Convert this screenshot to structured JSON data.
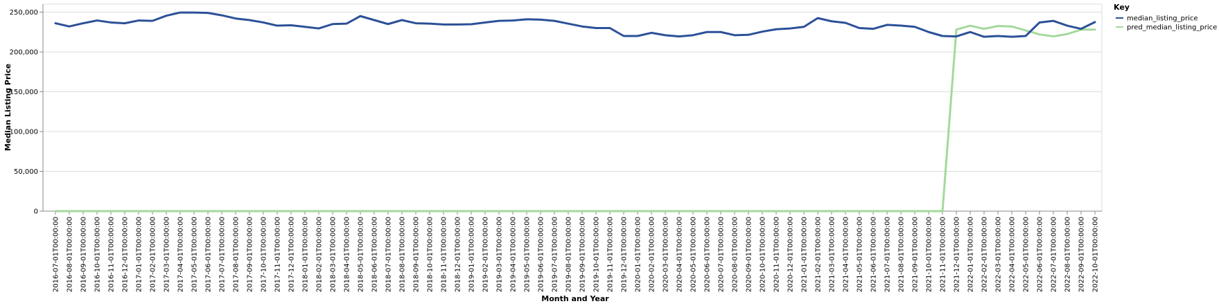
{
  "chart_data": {
    "type": "line",
    "xlabel": "Month and Year",
    "ylabel": "Median Listing Price",
    "ylim": [
      0,
      260000
    ],
    "y_ticks": [
      0,
      50000,
      100000,
      150000,
      200000,
      250000
    ],
    "y_tick_labels": [
      "0",
      "50,000",
      "100,000",
      "150,000",
      "200,000",
      "250,000"
    ],
    "grid": "horizontal",
    "legend": {
      "title": "Key",
      "placement": "top-right"
    },
    "x": [
      "2016-07-01T00:00:00",
      "2016-08-01T00:00:00",
      "2016-09-01T00:00:00",
      "2016-10-01T00:00:00",
      "2016-11-01T00:00:00",
      "2016-12-01T00:00:00",
      "2017-01-01T00:00:00",
      "2017-02-01T00:00:00",
      "2017-03-01T00:00:00",
      "2017-04-01T00:00:00",
      "2017-05-01T00:00:00",
      "2017-06-01T00:00:00",
      "2017-07-01T00:00:00",
      "2017-08-01T00:00:00",
      "2017-09-01T00:00:00",
      "2017-10-01T00:00:00",
      "2017-11-01T00:00:00",
      "2017-12-01T00:00:00",
      "2018-01-01T00:00:00",
      "2018-02-01T00:00:00",
      "2018-03-01T00:00:00",
      "2018-04-01T00:00:00",
      "2018-05-01T00:00:00",
      "2018-06-01T00:00:00",
      "2018-07-01T00:00:00",
      "2018-08-01T00:00:00",
      "2018-09-01T00:00:00",
      "2018-10-01T00:00:00",
      "2018-11-01T00:00:00",
      "2018-12-01T00:00:00",
      "2019-01-01T00:00:00",
      "2019-02-01T00:00:00",
      "2019-03-01T00:00:00",
      "2019-04-01T00:00:00",
      "2019-05-01T00:00:00",
      "2019-06-01T00:00:00",
      "2019-07-01T00:00:00",
      "2019-08-01T00:00:00",
      "2019-09-01T00:00:00",
      "2019-10-01T00:00:00",
      "2019-11-01T00:00:00",
      "2019-12-01T00:00:00",
      "2020-01-01T00:00:00",
      "2020-02-01T00:00:00",
      "2020-03-01T00:00:00",
      "2020-04-01T00:00:00",
      "2020-05-01T00:00:00",
      "2020-06-01T00:00:00",
      "2020-07-01T00:00:00",
      "2020-08-01T00:00:00",
      "2020-09-01T00:00:00",
      "2020-10-01T00:00:00",
      "2020-11-01T00:00:00",
      "2020-12-01T00:00:00",
      "2021-01-01T00:00:00",
      "2021-02-01T00:00:00",
      "2021-03-01T00:00:00",
      "2021-04-01T00:00:00",
      "2021-05-01T00:00:00",
      "2021-06-01T00:00:00",
      "2021-07-01T00:00:00",
      "2021-08-01T00:00:00",
      "2021-09-01T00:00:00",
      "2021-10-01T00:00:00",
      "2021-11-01T00:00:00",
      "2021-12-01T00:00:00",
      "2022-01-01T00:00:00",
      "2022-02-01T00:00:00",
      "2022-03-01T00:00:00",
      "2022-04-01T00:00:00",
      "2022-05-01T00:00:00",
      "2022-06-01T00:00:00",
      "2022-07-01T00:00:00",
      "2022-08-01T00:00:00",
      "2022-09-01T00:00:00",
      "2022-10-01T00:00:00"
    ],
    "series": [
      {
        "name": "median_listing_price",
        "color": "#2c5098",
        "values": [
          236000,
          232000,
          236000,
          239500,
          237000,
          236000,
          239500,
          239000,
          245500,
          249500,
          249500,
          249000,
          246000,
          242000,
          240000,
          237000,
          233000,
          233500,
          231500,
          229500,
          235000,
          235500,
          245000,
          240000,
          235000,
          240000,
          236000,
          235500,
          234500,
          234500,
          234800,
          237000,
          239000,
          239500,
          241000,
          240500,
          239000,
          235500,
          232000,
          230000,
          230000,
          220000,
          220000,
          224000,
          221000,
          219500,
          221000,
          225000,
          225000,
          221000,
          221500,
          225500,
          228500,
          229500,
          231500,
          242500,
          238500,
          236500,
          230000,
          229000,
          234000,
          233000,
          231500,
          225000,
          220000,
          219500,
          225000,
          219000,
          220000,
          219000,
          220000,
          237000,
          239000,
          233000,
          229000,
          237500
        ]
      },
      {
        "name": "pred_median_listing_price",
        "color": "#a3d99b",
        "values": [
          0,
          0,
          0,
          0,
          0,
          0,
          0,
          0,
          0,
          0,
          0,
          0,
          0,
          0,
          0,
          0,
          0,
          0,
          0,
          0,
          0,
          0,
          0,
          0,
          0,
          0,
          0,
          0,
          0,
          0,
          0,
          0,
          0,
          0,
          0,
          0,
          0,
          0,
          0,
          0,
          0,
          0,
          0,
          0,
          0,
          0,
          0,
          0,
          0,
          0,
          0,
          0,
          0,
          0,
          0,
          0,
          0,
          0,
          0,
          0,
          0,
          0,
          0,
          0,
          0,
          228000,
          233000,
          229000,
          232500,
          232000,
          227000,
          222000,
          219500,
          222500,
          228000,
          228000
        ]
      }
    ]
  }
}
